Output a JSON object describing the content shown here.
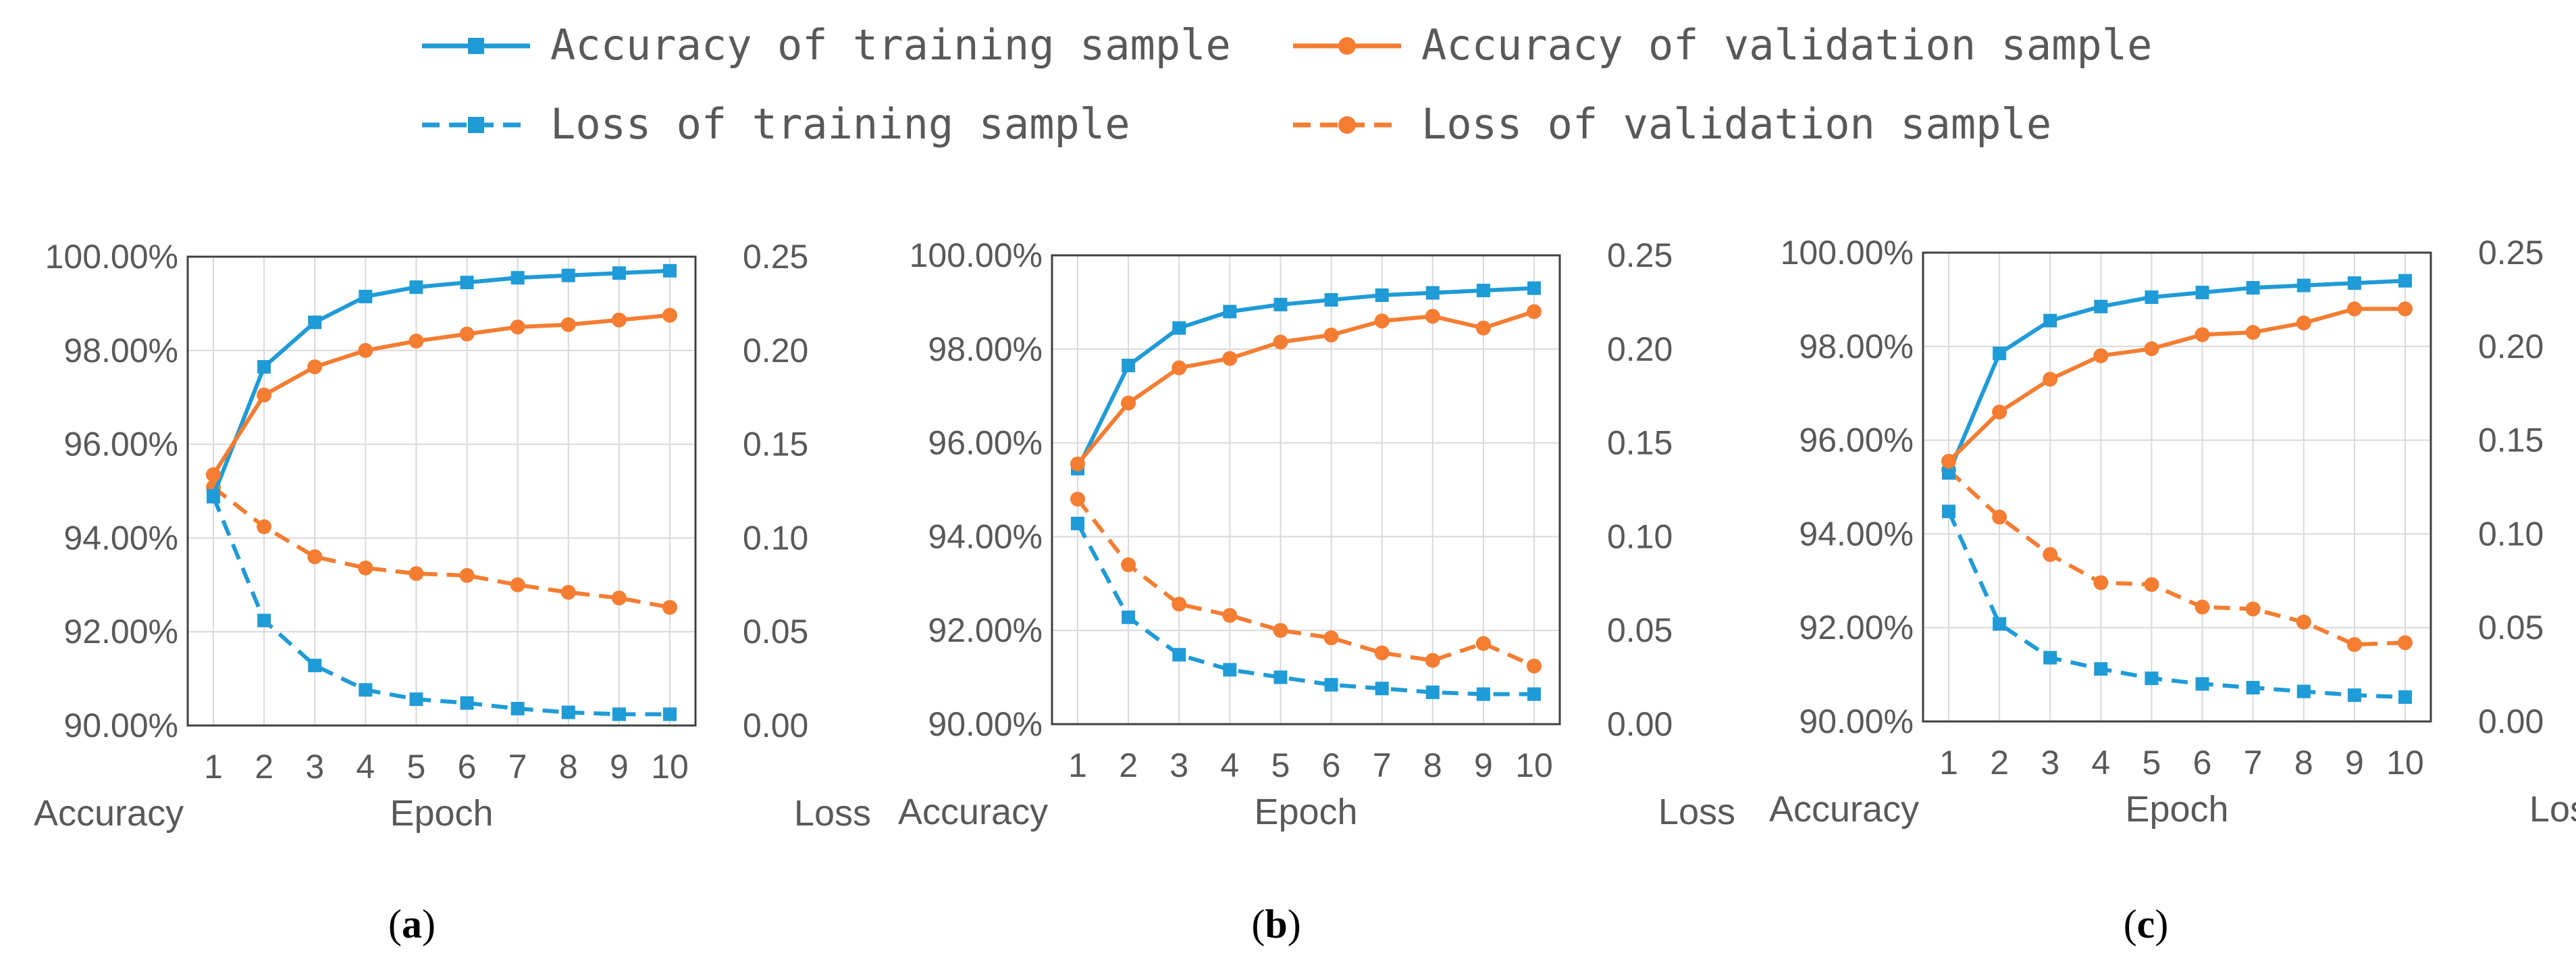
{
  "colors": {
    "blue": "#1f9bd7",
    "orange": "#f47d32",
    "grid": "#d9d9d9",
    "frame": "#404040",
    "text": "#595959"
  },
  "legend": [
    {
      "id": "acc-train",
      "label": "Accuracy of training sample",
      "color": "#1f9bd7",
      "marker": "square",
      "dashed": false
    },
    {
      "id": "acc-val",
      "label": "Accuracy of validation sample",
      "color": "#f47d32",
      "marker": "circle",
      "dashed": false
    },
    {
      "id": "loss-train",
      "label": "Loss of training sample",
      "color": "#1f9bd7",
      "marker": "square",
      "dashed": true
    },
    {
      "id": "loss-val",
      "label": "Loss of validation sample",
      "color": "#f47d32",
      "marker": "circle",
      "dashed": true
    }
  ],
  "chart_data": [
    {
      "type": "line",
      "panel": "a",
      "panel_label": "a",
      "x": [
        1,
        2,
        3,
        4,
        5,
        6,
        7,
        8,
        9,
        10
      ],
      "xlabel": "Epoch",
      "ylabel_left": "Accuracy",
      "ylabel_right": "Loss",
      "ylim_left": [
        90,
        100
      ],
      "ylim_right": [
        0,
        0.25
      ],
      "yticks_left": [
        "90.00%",
        "92.00%",
        "94.00%",
        "96.00%",
        "98.00%",
        "100.00%"
      ],
      "yticks_right": [
        "0.00",
        "0.05",
        "0.10",
        "0.15",
        "0.20",
        "0.25"
      ],
      "grid": true,
      "series": [
        {
          "name": "Accuracy of training sample",
          "axis": "left",
          "values": [
            94.9,
            97.65,
            98.6,
            99.15,
            99.35,
            99.45,
            99.55,
            99.6,
            99.65,
            99.7
          ]
        },
        {
          "name": "Accuracy of validation sample",
          "axis": "left",
          "values": [
            95.35,
            97.05,
            97.65,
            98.0,
            98.2,
            98.35,
            98.5,
            98.55,
            98.65,
            98.75
          ]
        },
        {
          "name": "Loss of training sample",
          "axis": "right",
          "values": [
            0.122,
            0.056,
            0.032,
            0.019,
            0.014,
            0.012,
            0.009,
            0.007,
            0.006,
            0.006
          ]
        },
        {
          "name": "Loss of validation sample",
          "axis": "right",
          "values": [
            0.127,
            0.106,
            0.09,
            0.084,
            0.081,
            0.08,
            0.075,
            0.071,
            0.068,
            0.063
          ]
        }
      ]
    },
    {
      "type": "line",
      "panel": "b",
      "panel_label": "b",
      "x": [
        1,
        2,
        3,
        4,
        5,
        6,
        7,
        8,
        9,
        10
      ],
      "xlabel": "Epoch",
      "ylabel_left": "Accuracy",
      "ylabel_right": "Loss",
      "ylim_left": [
        90,
        100
      ],
      "ylim_right": [
        0,
        0.25
      ],
      "yticks_left": [
        "90.00%",
        "92.00%",
        "94.00%",
        "96.00%",
        "98.00%",
        "100.00%"
      ],
      "yticks_right": [
        "0.00",
        "0.05",
        "0.10",
        "0.15",
        "0.20",
        "0.25"
      ],
      "grid": true,
      "series": [
        {
          "name": "Accuracy of training sample",
          "axis": "left",
          "values": [
            95.45,
            97.65,
            98.45,
            98.8,
            98.95,
            99.05,
            99.15,
            99.2,
            99.25,
            99.3
          ]
        },
        {
          "name": "Accuracy of validation sample",
          "axis": "left",
          "values": [
            95.55,
            96.85,
            97.6,
            97.8,
            98.15,
            98.3,
            98.6,
            98.7,
            98.45,
            98.8
          ]
        },
        {
          "name": "Loss of training sample",
          "axis": "right",
          "values": [
            0.107,
            0.057,
            0.037,
            0.029,
            0.025,
            0.021,
            0.019,
            0.017,
            0.016,
            0.016
          ]
        },
        {
          "name": "Loss of validation sample",
          "axis": "right",
          "values": [
            0.12,
            0.085,
            0.064,
            0.058,
            0.05,
            0.046,
            0.038,
            0.034,
            0.043,
            0.031
          ]
        }
      ]
    },
    {
      "type": "line",
      "panel": "c",
      "panel_label": "c",
      "x": [
        1,
        2,
        3,
        4,
        5,
        6,
        7,
        8,
        9,
        10
      ],
      "xlabel": "Epoch",
      "ylabel_left": "Accuracy",
      "ylabel_right": "Loss",
      "ylim_left": [
        90,
        100
      ],
      "ylim_right": [
        0,
        0.25
      ],
      "yticks_left": [
        "90.00%",
        "92.00%",
        "94.00%",
        "96.00%",
        "98.00%",
        "100.00%"
      ],
      "yticks_right": [
        "0.00",
        "0.05",
        "0.10",
        "0.15",
        "0.20",
        "0.25"
      ],
      "grid": true,
      "series": [
        {
          "name": "Accuracy of training sample",
          "axis": "left",
          "values": [
            95.3,
            97.85,
            98.55,
            98.85,
            99.05,
            99.15,
            99.25,
            99.3,
            99.35,
            99.4
          ]
        },
        {
          "name": "Accuracy of validation sample",
          "axis": "left",
          "values": [
            95.55,
            96.6,
            97.3,
            97.8,
            97.95,
            98.25,
            98.3,
            98.5,
            98.8,
            98.8
          ]
        },
        {
          "name": "Loss of training sample",
          "axis": "right",
          "values": [
            0.112,
            0.052,
            0.034,
            0.028,
            0.023,
            0.02,
            0.018,
            0.016,
            0.014,
            0.013
          ]
        },
        {
          "name": "Loss of validation sample",
          "axis": "right",
          "values": [
            0.134,
            0.109,
            0.089,
            0.074,
            0.073,
            0.061,
            0.06,
            0.053,
            0.041,
            0.042
          ]
        }
      ]
    }
  ]
}
